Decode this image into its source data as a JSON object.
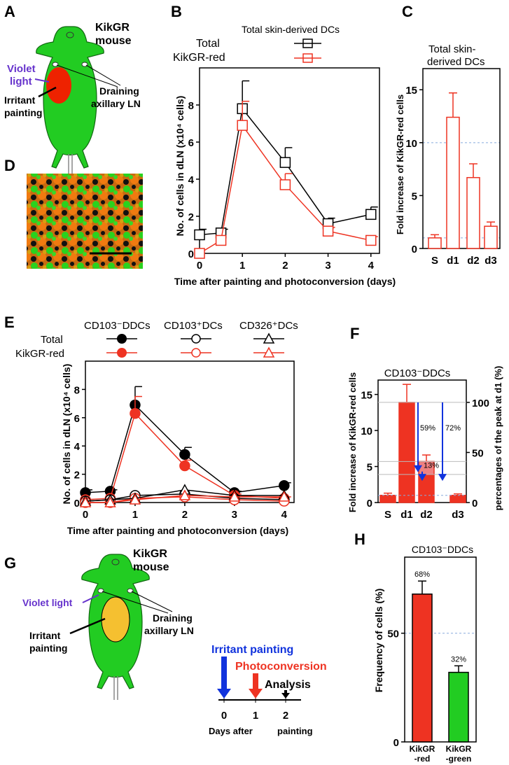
{
  "panel_labels": [
    "A",
    "B",
    "C",
    "D",
    "E",
    "F",
    "G",
    "H"
  ],
  "colors": {
    "red": "#ee3322",
    "green": "#22cc22",
    "blue": "#1133dd",
    "violet": "#6633cc",
    "yellow": "#f5c030",
    "dash": "#88aadd"
  },
  "panelA": {
    "title_line1": "KikGR",
    "title_line2": "mouse",
    "violet_line1": "Violet",
    "violet_line2": "light",
    "irritant_line1": "Irritant",
    "irritant_line2": "painting",
    "draining_line1": "Draining",
    "draining_line2": "axillary LN"
  },
  "panelG": {
    "title_line1": "KikGR",
    "title_line2": "mouse",
    "violet": "Violet light",
    "irritant_line1": "Irritant",
    "irritant_line2": "painting",
    "draining_line1": "Draining",
    "draining_line2": "axillary LN",
    "timeline": {
      "irritant": "Irritant painting",
      "photo": "Photoconversion",
      "analysis": "Analysis",
      "ticks": [
        "0",
        "1",
        "2"
      ],
      "xlabel_left": "Days after",
      "xlabel_right": "painting"
    }
  },
  "chart_data": [
    {
      "id": "B",
      "type": "line",
      "title": "Total skin-derived DCs",
      "legend": [
        "Total",
        "KikGR-red"
      ],
      "xlabel": "Time after painting and photoconversion (days)",
      "ylabel": "No. of cells in dLN (x10⁴ cells)",
      "xlim": [
        0,
        4.2
      ],
      "ylim": [
        0,
        10
      ],
      "xticks": [
        "0",
        "1",
        "2",
        "3",
        "4"
      ],
      "yticks": [
        "0",
        "2",
        "4",
        "6",
        "8"
      ],
      "series": [
        {
          "name": "Total",
          "x": [
            0,
            0.5,
            1,
            2,
            3,
            4
          ],
          "y": [
            1.0,
            1.1,
            7.8,
            4.9,
            1.6,
            2.1
          ],
          "err": [
            0.3,
            0.2,
            1.5,
            0.8,
            0.3,
            0.4
          ]
        },
        {
          "name": "KikGR-red",
          "x": [
            0,
            0.5,
            1,
            2,
            3,
            4
          ],
          "y": [
            0,
            0.7,
            6.9,
            3.7,
            1.2,
            0.7
          ],
          "err": [
            0,
            0,
            1.3,
            0.6,
            0.2,
            0.2
          ]
        }
      ]
    },
    {
      "id": "C",
      "type": "bar",
      "title_line1": "Total skin-",
      "title_line2": "derived DCs",
      "ylabel": "Fold increase of KikGR-red cells",
      "categories": [
        "S",
        "d1",
        "d2",
        "d3"
      ],
      "values": [
        1.0,
        12.4,
        6.7,
        2.1
      ],
      "err": [
        0.3,
        2.3,
        1.3,
        0.4
      ],
      "ylim": [
        0,
        17
      ],
      "yticks": [
        "0",
        "5",
        "10",
        "15"
      ],
      "reference_lines": [
        1,
        10
      ]
    },
    {
      "id": "E",
      "type": "line",
      "legend_headers": [
        "CD103⁻DDCs",
        "CD103⁺DCs",
        "CD326⁺DCs"
      ],
      "legend_rows": [
        "Total",
        "KikGR-red"
      ],
      "xlabel": "Time after painting and photoconversion (days)",
      "ylabel": "No. of cells in dLN (x10⁴ cells)",
      "xlim": [
        0,
        4.2
      ],
      "ylim": [
        0,
        10
      ],
      "xticks": [
        "0",
        "1",
        "2",
        "3",
        "4"
      ],
      "yticks": [
        "0",
        "2",
        "4",
        "6",
        "8"
      ],
      "series": [
        {
          "name": "CD103- Total",
          "x": [
            0,
            0.5,
            1,
            2,
            3,
            4
          ],
          "y": [
            0.7,
            0.8,
            6.9,
            3.4,
            0.7,
            1.2
          ],
          "err": [
            0.2,
            0.1,
            1.3,
            0.5,
            0.1,
            0.2
          ]
        },
        {
          "name": "CD103- KikGR-red",
          "x": [
            0,
            0.5,
            1,
            2,
            3,
            4
          ],
          "y": [
            0.2,
            0.3,
            6.3,
            2.6,
            0.5,
            0.3
          ],
          "err": [
            0,
            0,
            1.2,
            0.4,
            0.1,
            0.1
          ]
        },
        {
          "name": "CD103+ Total",
          "x": [
            0,
            0.5,
            1,
            2,
            3,
            4
          ],
          "y": [
            0.1,
            0.2,
            0.5,
            0.6,
            0.3,
            0.2
          ],
          "err": [
            0,
            0,
            0,
            0,
            0,
            0
          ]
        },
        {
          "name": "CD103+ KikGR-red",
          "x": [
            0,
            0.5,
            1,
            2,
            3,
            4
          ],
          "y": [
            0,
            0,
            0.3,
            0.4,
            0.2,
            0.1
          ],
          "err": [
            0,
            0,
            0,
            0,
            0,
            0
          ]
        },
        {
          "name": "CD326+ Total",
          "x": [
            0,
            0.5,
            1,
            2,
            3,
            4
          ],
          "y": [
            0.1,
            0.2,
            0.3,
            0.9,
            0.5,
            0.5
          ],
          "err": [
            0,
            0,
            0,
            0,
            0,
            0
          ]
        },
        {
          "name": "CD326+ KikGR-red",
          "x": [
            0,
            0.5,
            1,
            2,
            3,
            4
          ],
          "y": [
            0,
            0,
            0.2,
            0.5,
            0.4,
            0.4
          ],
          "err": [
            0,
            0,
            0,
            0,
            0,
            0
          ]
        }
      ]
    },
    {
      "id": "F",
      "type": "bar",
      "title": "CD103⁻DDCs",
      "ylabel": "Fold increase of KikGR-red cells",
      "ylabel_right": "percentages of the peak at d1 (%)",
      "categories": [
        "S",
        "d1",
        "d2",
        "d3"
      ],
      "values": [
        1.0,
        13.9,
        5.7,
        1.0
      ],
      "err": [
        0.3,
        2.5,
        0.9,
        0.2
      ],
      "ylim": [
        0,
        17
      ],
      "yticks": [
        "0",
        "5",
        "10",
        "15"
      ],
      "yticks_right": [
        "0",
        "50",
        "100"
      ],
      "annotations": [
        "59%",
        "72%",
        "13%"
      ]
    },
    {
      "id": "H",
      "type": "bar",
      "title": "CD103⁻DDCs",
      "ylabel": "Frequency of cells (%)",
      "categories_line1": [
        "KikGR",
        "KikGR"
      ],
      "categories_line2": [
        "-red",
        "-green"
      ],
      "values": [
        68,
        32
      ],
      "err": [
        6,
        3
      ],
      "value_labels": [
        "68%",
        "32%"
      ],
      "ylim": [
        0,
        85
      ],
      "yticks": [
        "0",
        "50"
      ],
      "reference_lines": [
        50
      ]
    }
  ]
}
